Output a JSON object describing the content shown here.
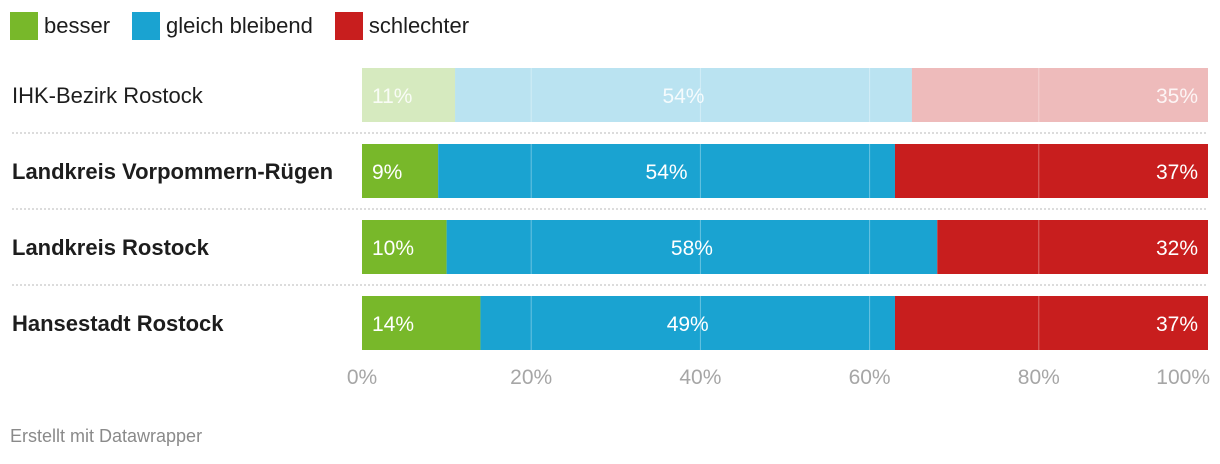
{
  "chart_data": {
    "type": "bar",
    "orientation": "horizontal",
    "stacked": true,
    "categories": [
      "IHK-Bezirk Rostock",
      "Landkreis Vorpommern-Rügen",
      "Landkreis Rostock",
      "Hansestadt Rostock"
    ],
    "category_emphasis": [
      false,
      true,
      true,
      true
    ],
    "series": [
      {
        "name": "besser",
        "color": "#78b82a",
        "values": [
          11,
          9,
          10,
          14
        ]
      },
      {
        "name": "gleich bleibend",
        "color": "#1aa3d1",
        "values": [
          54,
          54,
          58,
          49
        ]
      },
      {
        "name": "schlechter",
        "color": "#c81e1e",
        "values": [
          35,
          37,
          32,
          37
        ]
      }
    ],
    "data_labels": [
      [
        "11%",
        "54%",
        "35%"
      ],
      [
        "9%",
        "54%",
        "37%"
      ],
      [
        "10%",
        "58%",
        "32%"
      ],
      [
        "14%",
        "49%",
        "37%"
      ]
    ],
    "faded_rows": [
      0
    ],
    "xlim": [
      0,
      100
    ],
    "x_ticks": [
      0,
      20,
      40,
      60,
      80,
      100
    ],
    "x_tick_labels": [
      "0%",
      "20%",
      "40%",
      "60%",
      "80%",
      "100%"
    ],
    "grid": true,
    "legend_position": "top-left"
  },
  "footer": {
    "credit": "Erstellt mit Datawrapper"
  }
}
